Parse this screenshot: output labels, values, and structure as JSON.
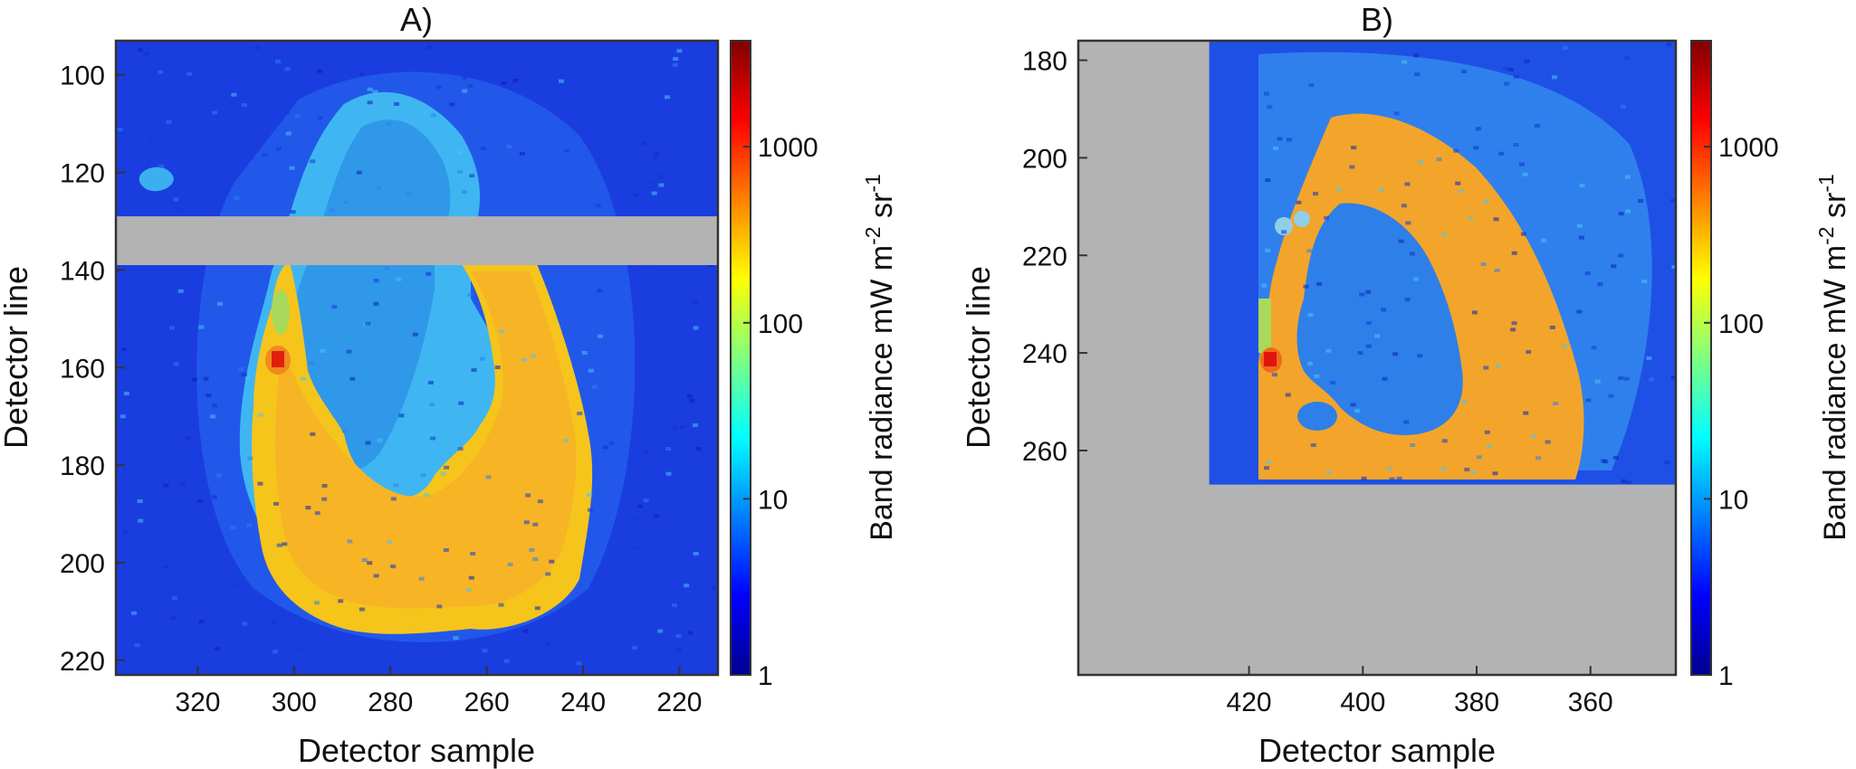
{
  "chart_data": [
    {
      "type": "heatmap",
      "panel": "A)",
      "title": "A)",
      "xlabel": "Detector sample",
      "ylabel": "Detector line",
      "xlim": [
        337,
        212
      ],
      "ylim": [
        93,
        223
      ],
      "x_reversed": true,
      "y_reversed": true,
      "xticks": [
        320,
        300,
        280,
        260,
        240,
        220
      ],
      "yticks": [
        100,
        120,
        140,
        160,
        180,
        200,
        220
      ],
      "no_data_bands": [
        {
          "line_from": 129,
          "line_to": 139
        }
      ],
      "colorbar": {
        "label": "Band radiance mW m-2 sr-1",
        "label_text": "Band radiance mW m",
        "sup1": "-2",
        "mid": " sr",
        "sup2": "-1",
        "scale": "log",
        "range": [
          1,
          4000
        ],
        "ticks": [
          1,
          10,
          100,
          1000
        ],
        "tick_labels": [
          "1",
          "10",
          "100",
          "1000"
        ]
      },
      "features": {
        "background_level": 3,
        "plume_outer_level": 30,
        "hot_ring_level": 500,
        "hotspot_level": 3000,
        "hotspot": {
          "sample": 304,
          "line": 158
        }
      }
    },
    {
      "type": "heatmap",
      "panel": "B)",
      "title": "B)",
      "xlabel": "Detector sample",
      "ylabel": "Detector line",
      "xlim": [
        450,
        345
      ],
      "ylim": [
        176,
        306
      ],
      "x_reversed": true,
      "y_reversed": true,
      "xticks": [
        420,
        400,
        380,
        360
      ],
      "yticks": [
        180,
        200,
        220,
        240,
        260
      ],
      "data_extent": {
        "sample_from": 427,
        "sample_to": 345,
        "line_from": 176,
        "line_to": 267
      },
      "colorbar": {
        "label": "Band radiance mW m-2 sr-1",
        "label_text": "Band radiance mW m",
        "sup1": "-2",
        "mid": " sr",
        "sup2": "-1",
        "scale": "log",
        "range": [
          1,
          4000
        ],
        "ticks": [
          1,
          10,
          100,
          1000
        ],
        "tick_labels": [
          "1",
          "10",
          "100",
          "1000"
        ]
      },
      "features": {
        "background_level": 3,
        "hot_ring_level": 600,
        "inner_lake_level": 15,
        "hotspot_level": 3000,
        "hotspot": {
          "sample": 424,
          "line": 240
        }
      }
    }
  ]
}
